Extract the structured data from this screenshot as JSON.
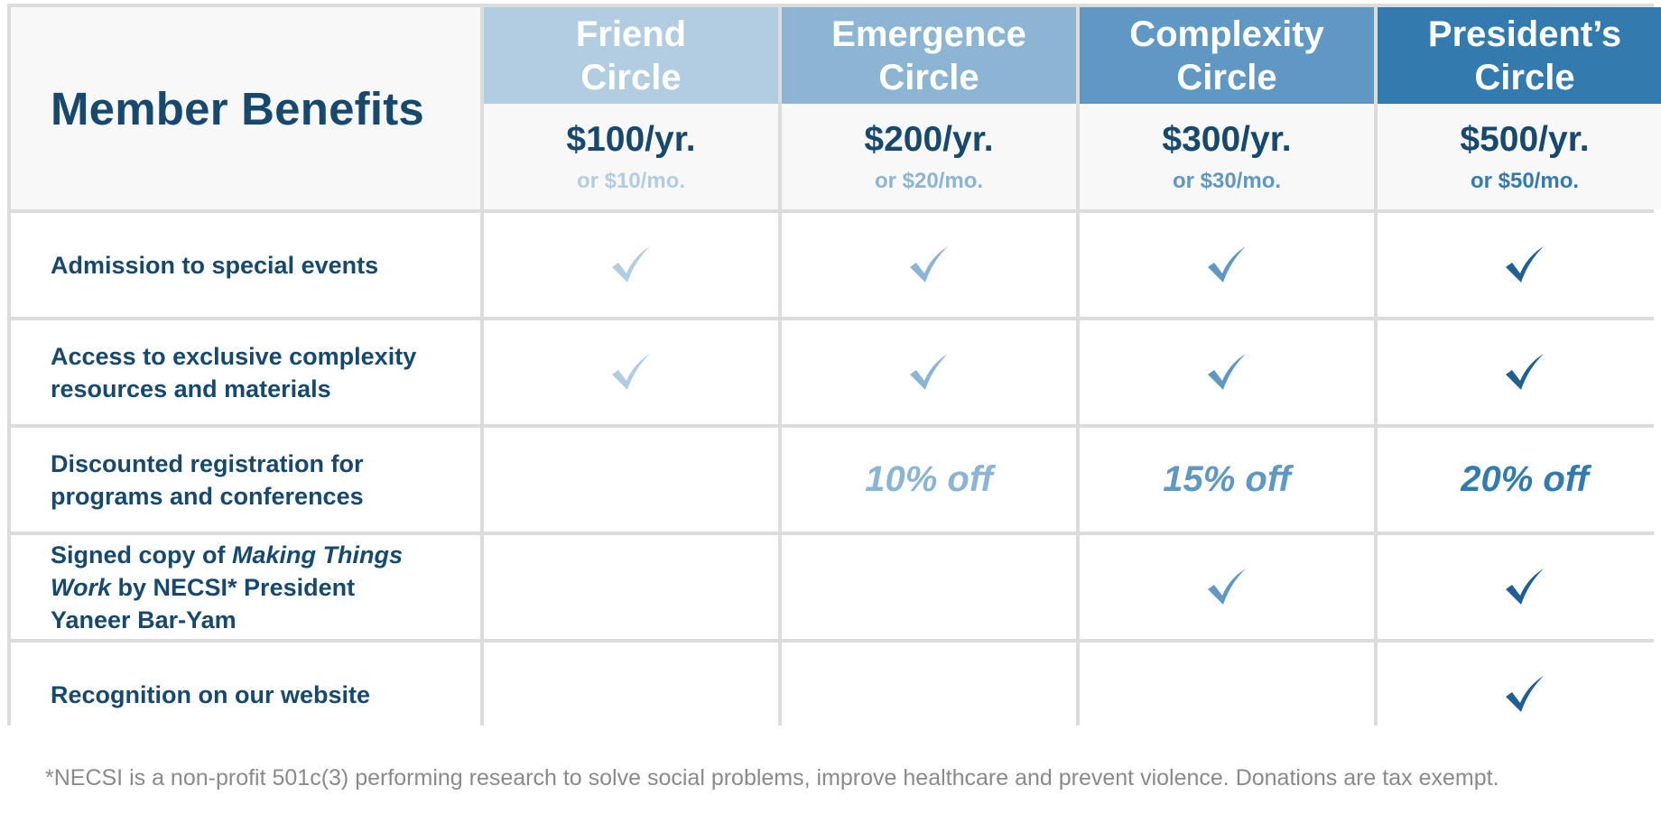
{
  "header": {
    "title": "Member Benefits"
  },
  "colors": {
    "text_dark": "#17486e",
    "tier_friend": "#b2cde2",
    "tier_emergence": "#8cb5d4",
    "tier_complexity": "#5f98c2",
    "tier_president": "#337bae",
    "grid": "#dcdcdc",
    "footnote": "#8a8a8a"
  },
  "tiers": [
    {
      "name_line1": "Friend",
      "name_line2": "Circle",
      "price_year": "$100/yr.",
      "price_month": "or $10/mo."
    },
    {
      "name_line1": "Emergence",
      "name_line2": "Circle",
      "price_year": "$200/yr.",
      "price_month": "or $20/mo."
    },
    {
      "name_line1": "Complexity",
      "name_line2": "Circle",
      "price_year": "$300/yr.",
      "price_month": "or $30/mo."
    },
    {
      "name_line1": "President’s",
      "name_line2": "Circle",
      "price_year": "$500/yr.",
      "price_month": "or $50/mo."
    }
  ],
  "benefits": [
    {
      "label": "Admission to special events",
      "values": [
        "check",
        "check",
        "check",
        "check"
      ]
    },
    {
      "label_line1": "Access to exclusive complexity",
      "label_line2": "resources and materials",
      "values": [
        "check",
        "check",
        "check",
        "check"
      ]
    },
    {
      "label_line1": "Discounted registration for",
      "label_line2": "programs and conferences",
      "values": [
        "",
        "10% off",
        "15% off",
        "20% off"
      ]
    },
    {
      "label_part1": "Signed copy of ",
      "label_italic1": "Making Things",
      "label_italic2": "Work",
      "label_part2": " by NECSI* President",
      "label_line3": "Yaneer Bar-Yam",
      "values": [
        "",
        "",
        "check",
        "check"
      ]
    },
    {
      "label": "Recognition on our website",
      "values": [
        "",
        "",
        "",
        "check"
      ]
    }
  ],
  "icons": {
    "check": "checkmark-icon"
  },
  "footnote": "*NECSI is a non-profit 501c(3) performing research to solve social problems, improve healthcare and prevent violence. Donations are tax exempt."
}
